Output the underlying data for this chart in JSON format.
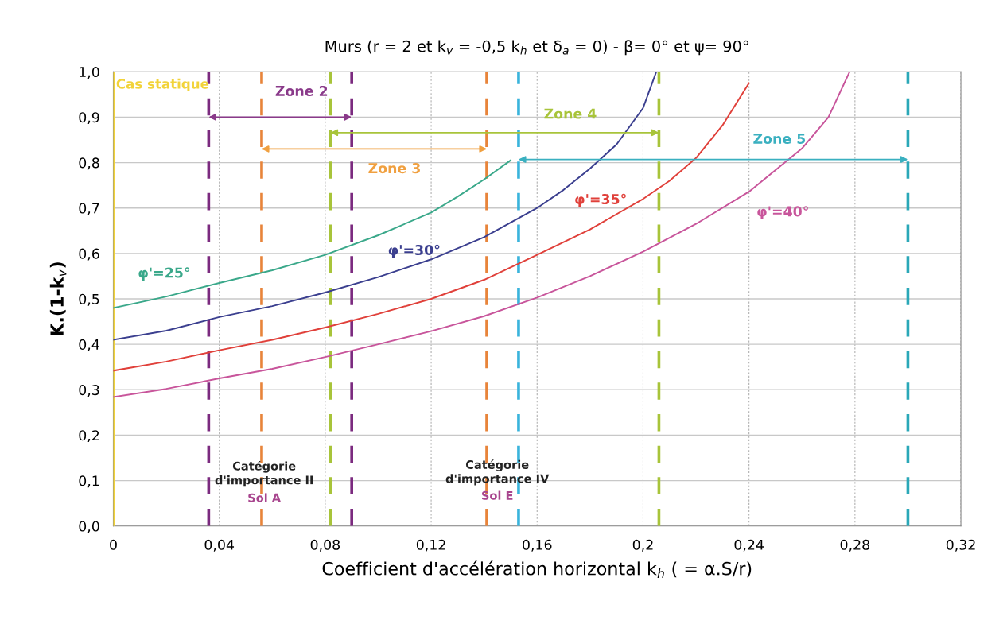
{
  "chart_data": {
    "type": "line",
    "title": "Murs (r = 2 et k$_{v}$ = -0,5 k$_{h}$ et δ$_{a}$ = 0) - β= 0° et ψ= 90°",
    "xlabel": "Coefficient d'accélération horizontal k$_{h}$ ( = α.S/r)",
    "ylabel": "K.(1-k$_{v}$)",
    "series": [
      {
        "name": "φ'=25°",
        "color": "#3aa88a",
        "x": [
          0,
          0.02,
          0.04,
          0.06,
          0.08,
          0.1,
          0.12,
          0.13,
          0.14,
          0.15
        ],
        "values": [
          0.48,
          0.505,
          0.535,
          0.563,
          0.597,
          0.64,
          0.69,
          0.725,
          0.763,
          0.805
        ]
      },
      {
        "name": "φ'=30°",
        "color": "#3b3f8f",
        "x": [
          0,
          0.02,
          0.04,
          0.06,
          0.08,
          0.1,
          0.12,
          0.14,
          0.16,
          0.17,
          0.18,
          0.19,
          0.2,
          0.205
        ],
        "values": [
          0.41,
          0.43,
          0.46,
          0.484,
          0.514,
          0.548,
          0.587,
          0.636,
          0.7,
          0.74,
          0.787,
          0.84,
          0.92,
          1.0
        ]
      },
      {
        "name": "φ'=35°",
        "color": "#e0403a",
        "x": [
          0,
          0.02,
          0.04,
          0.06,
          0.08,
          0.1,
          0.12,
          0.14,
          0.16,
          0.18,
          0.2,
          0.21,
          0.22,
          0.23,
          0.24
        ],
        "values": [
          0.342,
          0.362,
          0.387,
          0.41,
          0.437,
          0.467,
          0.5,
          0.542,
          0.597,
          0.653,
          0.72,
          0.76,
          0.81,
          0.882,
          0.975
        ]
      },
      {
        "name": "φ'=40°",
        "color": "#c8559b",
        "x": [
          0,
          0.02,
          0.04,
          0.06,
          0.08,
          0.1,
          0.12,
          0.14,
          0.16,
          0.18,
          0.2,
          0.22,
          0.24,
          0.26,
          0.27,
          0.278
        ],
        "values": [
          0.284,
          0.302,
          0.325,
          0.346,
          0.372,
          0.4,
          0.429,
          0.462,
          0.503,
          0.55,
          0.604,
          0.665,
          0.736,
          0.831,
          0.9,
          1.0
        ]
      }
    ],
    "xlim": [
      0,
      0.32
    ],
    "xticks": [
      0,
      {
        "value": 0.04,
        "label": "0,04"
      },
      {
        "value": 0.08,
        "label": "0,08"
      },
      {
        "value": 0.12,
        "label": "0,12"
      },
      {
        "value": 0.16,
        "label": "0,16"
      },
      {
        "value": 0.2,
        "label": "0,2"
      },
      {
        "value": 0.24,
        "label": "0,24"
      },
      {
        "value": 0.28,
        "label": "0,28"
      },
      {
        "value": 0.32,
        "label": "0,32"
      }
    ],
    "ylim": [
      0,
      1
    ],
    "yticks": [
      {
        "value": 0,
        "label": "0,0"
      },
      {
        "value": 0.1,
        "label": "0,1"
      },
      {
        "value": 0.2,
        "label": "0,2"
      },
      {
        "value": 0.3,
        "label": "0,3"
      },
      {
        "value": 0.4,
        "label": "0,4"
      },
      {
        "value": 0.5,
        "label": "0,5"
      },
      {
        "value": 0.6,
        "label": "0,6"
      },
      {
        "value": 0.7,
        "label": "0,7"
      },
      {
        "value": 0.8,
        "label": "0,8"
      },
      {
        "value": 0.9,
        "label": "0,9"
      },
      {
        "value": 1,
        "label": "1,0"
      }
    ],
    "ref_lines": [
      {
        "axis": "x",
        "value": 0,
        "label": "Cas statique",
        "color": "#f2d33a",
        "line_style": "solid"
      },
      {
        "axis": "x",
        "value": 0.036,
        "color": "#7b2a7f",
        "line_style": "dashed"
      },
      {
        "axis": "x",
        "value": 0.056,
        "color": "#e8843a",
        "line_style": "dashed"
      },
      {
        "axis": "x",
        "value": 0.082,
        "color": "#a8c43a",
        "line_style": "dashed"
      },
      {
        "axis": "x",
        "value": 0.09,
        "color": "#7b2a7f",
        "line_style": "dashed"
      },
      {
        "axis": "x",
        "value": 0.141,
        "color": "#e8843a",
        "line_style": "dashed"
      },
      {
        "axis": "x",
        "value": 0.153,
        "color": "#3ab4dc",
        "line_style": "dashed"
      },
      {
        "axis": "x",
        "value": 0.206,
        "color": "#a8c43a",
        "line_style": "dashed"
      },
      {
        "axis": "x",
        "value": 0.3,
        "color": "#2aa8b8",
        "line_style": "dashed"
      }
    ],
    "annotations": [
      "Zone 2",
      "Zone 3",
      "Zone 4",
      "Zone 5",
      "Catégorie\nd'importance II",
      "Sol A",
      "Catégorie\nd'importance IV",
      "Sol E"
    ],
    "grid": true,
    "legend": false,
    "line_style": "solid",
    "marker": "none"
  }
}
